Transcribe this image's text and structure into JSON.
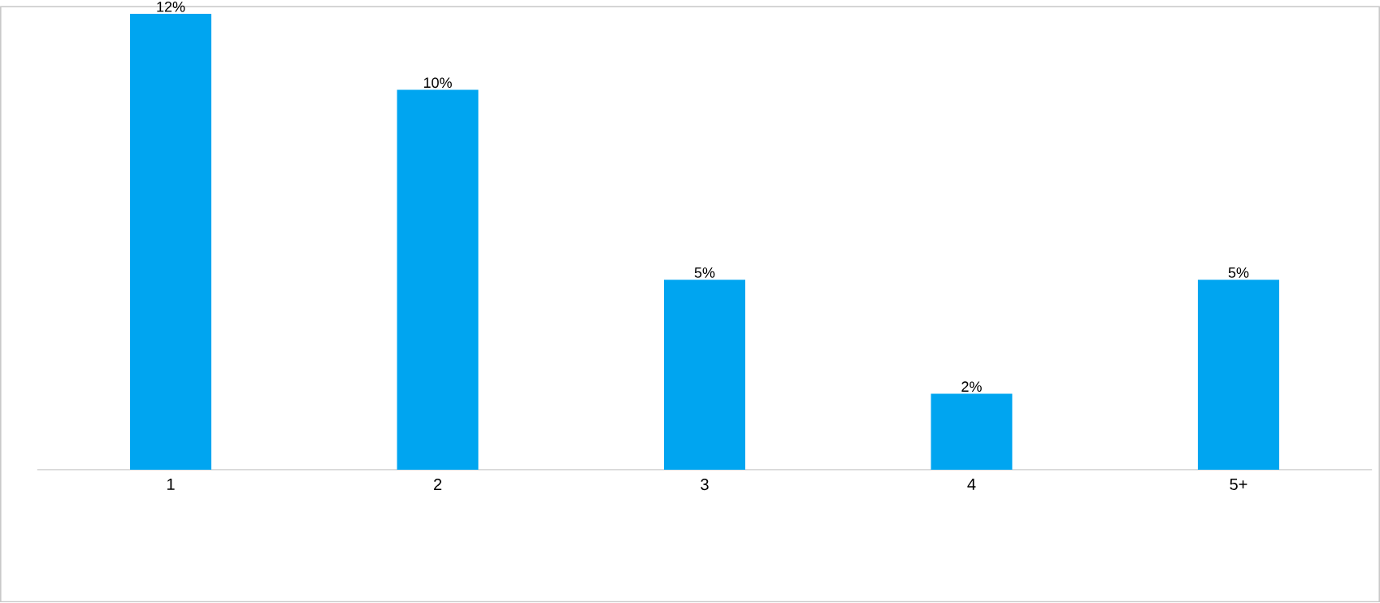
{
  "chart_data": {
    "type": "bar",
    "categories": [
      "1",
      "2",
      "3",
      "4",
      "5+"
    ],
    "values": [
      12,
      10,
      5,
      2,
      5
    ],
    "value_labels": [
      "12%",
      "10%",
      "5%",
      "2%",
      "5%"
    ],
    "color": "#00a5f0"
  }
}
